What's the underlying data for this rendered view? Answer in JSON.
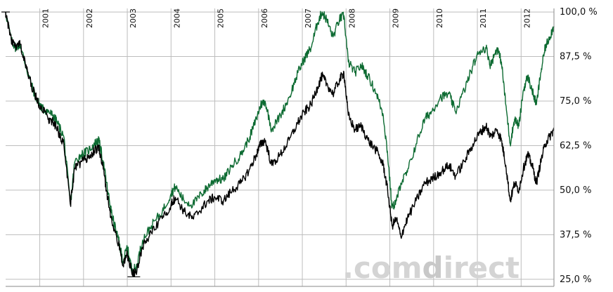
{
  "chart_data": {
    "type": "line",
    "title": "",
    "xlabel": "",
    "ylabel": "",
    "x_tick_labels": [
      "2001",
      "2002",
      "2003",
      "2004",
      "2005",
      "2006",
      "2007",
      "2008",
      "2009",
      "2010",
      "2011",
      "2012"
    ],
    "y_tick_labels": [
      "100,0 %",
      "87,5 %",
      "75,0 %",
      "62,5 %",
      "50,0 %",
      "37,5 %",
      "25,0 %"
    ],
    "y_ticks": [
      100,
      87.5,
      75,
      62.5,
      50,
      37.5,
      25
    ],
    "ylim": [
      23,
      101
    ],
    "xlim": [
      2000.22,
      2012.75
    ],
    "grid": true,
    "series": [
      {
        "color": "#0d6b32",
        "points": [
          [
            2000.22,
            100
          ],
          [
            2000.35,
            92
          ],
          [
            2000.45,
            90
          ],
          [
            2000.55,
            91
          ],
          [
            2000.7,
            84
          ],
          [
            2000.85,
            78
          ],
          [
            2000.95,
            75
          ],
          [
            2001.05,
            73
          ],
          [
            2001.2,
            72
          ],
          [
            2001.3,
            71
          ],
          [
            2001.4,
            69
          ],
          [
            2001.55,
            65
          ],
          [
            2001.7,
            46
          ],
          [
            2001.8,
            58
          ],
          [
            2001.95,
            60
          ],
          [
            2002.1,
            61
          ],
          [
            2002.25,
            63
          ],
          [
            2002.35,
            64
          ],
          [
            2002.45,
            58
          ],
          [
            2002.55,
            50
          ],
          [
            2002.65,
            43
          ],
          [
            2002.8,
            36
          ],
          [
            2002.9,
            30
          ],
          [
            2003.0,
            34
          ],
          [
            2003.1,
            28
          ],
          [
            2003.2,
            28
          ],
          [
            2003.35,
            36
          ],
          [
            2003.55,
            40
          ],
          [
            2003.8,
            44
          ],
          [
            2004.0,
            49
          ],
          [
            2004.1,
            51
          ],
          [
            2004.3,
            47
          ],
          [
            2004.5,
            46
          ],
          [
            2004.7,
            49
          ],
          [
            2004.85,
            51
          ],
          [
            2005.0,
            53
          ],
          [
            2005.2,
            53
          ],
          [
            2005.4,
            57
          ],
          [
            2005.6,
            60
          ],
          [
            2005.8,
            65
          ],
          [
            2005.95,
            70
          ],
          [
            2006.05,
            74
          ],
          [
            2006.15,
            75
          ],
          [
            2006.3,
            67
          ],
          [
            2006.5,
            71
          ],
          [
            2006.7,
            76
          ],
          [
            2006.9,
            83
          ],
          [
            2007.05,
            87
          ],
          [
            2007.2,
            90
          ],
          [
            2007.35,
            97
          ],
          [
            2007.45,
            100
          ],
          [
            2007.55,
            98
          ],
          [
            2007.7,
            93
          ],
          [
            2007.85,
            98
          ],
          [
            2007.95,
            99
          ],
          [
            2008.05,
            86
          ],
          [
            2008.2,
            83
          ],
          [
            2008.35,
            85
          ],
          [
            2008.5,
            82
          ],
          [
            2008.7,
            77
          ],
          [
            2008.85,
            71
          ],
          [
            2008.95,
            60
          ],
          [
            2009.05,
            45
          ],
          [
            2009.15,
            47
          ],
          [
            2009.25,
            52
          ],
          [
            2009.4,
            55
          ],
          [
            2009.6,
            63
          ],
          [
            2009.8,
            70
          ],
          [
            2009.95,
            72
          ],
          [
            2010.15,
            76
          ],
          [
            2010.35,
            77
          ],
          [
            2010.5,
            72
          ],
          [
            2010.7,
            78
          ],
          [
            2010.9,
            85
          ],
          [
            2011.05,
            89
          ],
          [
            2011.2,
            90
          ],
          [
            2011.3,
            85
          ],
          [
            2011.45,
            90
          ],
          [
            2011.55,
            86
          ],
          [
            2011.65,
            74
          ],
          [
            2011.75,
            63
          ],
          [
            2011.85,
            70
          ],
          [
            2011.95,
            68
          ],
          [
            2012.05,
            78
          ],
          [
            2012.15,
            82
          ],
          [
            2012.25,
            78
          ],
          [
            2012.35,
            74
          ],
          [
            2012.45,
            83
          ],
          [
            2012.55,
            90
          ],
          [
            2012.65,
            93
          ],
          [
            2012.75,
            96
          ]
        ]
      },
      {
        "color": "#000000",
        "points": [
          [
            2000.22,
            100
          ],
          [
            2000.35,
            92
          ],
          [
            2000.45,
            90
          ],
          [
            2000.55,
            91
          ],
          [
            2000.7,
            84
          ],
          [
            2000.85,
            78
          ],
          [
            2000.95,
            75
          ],
          [
            2001.05,
            73
          ],
          [
            2001.2,
            70
          ],
          [
            2001.3,
            69
          ],
          [
            2001.4,
            67
          ],
          [
            2001.55,
            63
          ],
          [
            2001.7,
            46
          ],
          [
            2001.8,
            56
          ],
          [
            2001.95,
            58
          ],
          [
            2002.1,
            59
          ],
          [
            2002.25,
            61
          ],
          [
            2002.35,
            62
          ],
          [
            2002.45,
            56
          ],
          [
            2002.55,
            48
          ],
          [
            2002.65,
            41
          ],
          [
            2002.8,
            35
          ],
          [
            2002.9,
            29
          ],
          [
            2003.0,
            32
          ],
          [
            2003.1,
            27
          ],
          [
            2003.2,
            27
          ],
          [
            2003.35,
            34
          ],
          [
            2003.55,
            38
          ],
          [
            2003.8,
            42
          ],
          [
            2004.0,
            46
          ],
          [
            2004.1,
            48
          ],
          [
            2004.3,
            44
          ],
          [
            2004.5,
            42
          ],
          [
            2004.7,
            45
          ],
          [
            2004.85,
            47
          ],
          [
            2005.0,
            48
          ],
          [
            2005.2,
            47
          ],
          [
            2005.4,
            50
          ],
          [
            2005.6,
            52
          ],
          [
            2005.8,
            56
          ],
          [
            2005.95,
            60
          ],
          [
            2006.05,
            63
          ],
          [
            2006.15,
            64
          ],
          [
            2006.3,
            57
          ],
          [
            2006.5,
            60
          ],
          [
            2006.7,
            64
          ],
          [
            2006.9,
            69
          ],
          [
            2007.05,
            72
          ],
          [
            2007.2,
            74
          ],
          [
            2007.35,
            79
          ],
          [
            2007.45,
            82
          ],
          [
            2007.55,
            80
          ],
          [
            2007.7,
            77
          ],
          [
            2007.85,
            81
          ],
          [
            2007.95,
            83
          ],
          [
            2008.05,
            71
          ],
          [
            2008.2,
            67
          ],
          [
            2008.35,
            68
          ],
          [
            2008.5,
            64
          ],
          [
            2008.7,
            61
          ],
          [
            2008.85,
            57
          ],
          [
            2008.95,
            50
          ],
          [
            2009.05,
            40
          ],
          [
            2009.15,
            42
          ],
          [
            2009.25,
            37
          ],
          [
            2009.4,
            42
          ],
          [
            2009.6,
            47
          ],
          [
            2009.8,
            52
          ],
          [
            2009.95,
            53
          ],
          [
            2010.15,
            55
          ],
          [
            2010.35,
            57
          ],
          [
            2010.5,
            54
          ],
          [
            2010.7,
            58
          ],
          [
            2010.9,
            63
          ],
          [
            2011.05,
            66
          ],
          [
            2011.2,
            68
          ],
          [
            2011.3,
            65
          ],
          [
            2011.45,
            67
          ],
          [
            2011.55,
            64
          ],
          [
            2011.65,
            57
          ],
          [
            2011.75,
            47
          ],
          [
            2011.85,
            52
          ],
          [
            2011.95,
            50
          ],
          [
            2012.05,
            56
          ],
          [
            2012.15,
            60
          ],
          [
            2012.25,
            57
          ],
          [
            2012.35,
            52
          ],
          [
            2012.45,
            58
          ],
          [
            2012.55,
            63
          ],
          [
            2012.65,
            65
          ],
          [
            2012.75,
            67
          ]
        ]
      }
    ]
  },
  "watermark": {
    "prefix": ".com",
    "middle": "d",
    "suffix": "irect"
  }
}
